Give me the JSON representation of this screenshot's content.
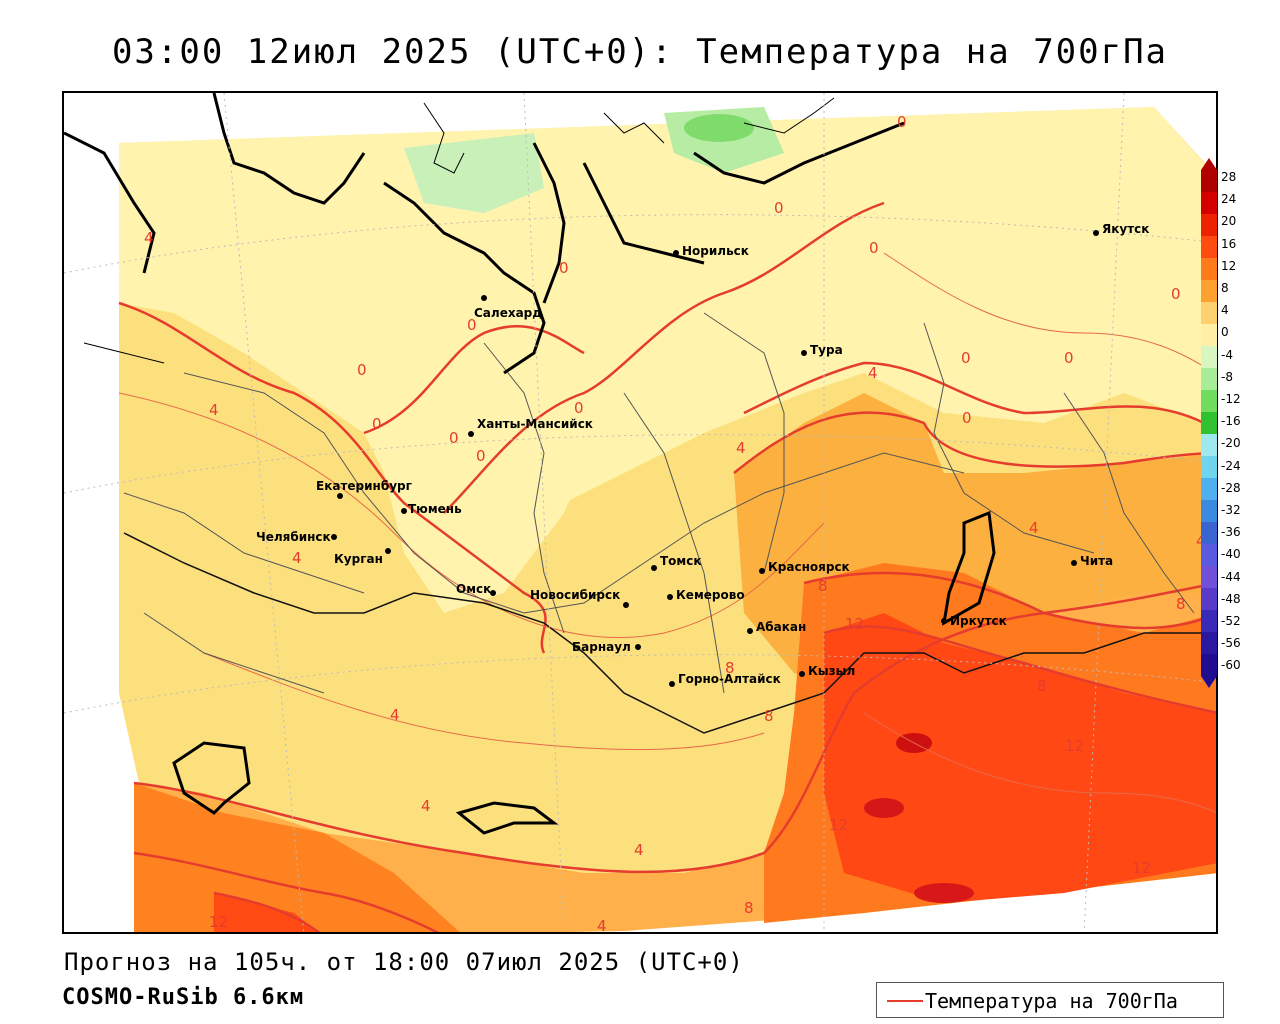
{
  "title": "03:00 12июл 2025 (UTC+0): Температура на 700гПа",
  "forecast_line": "Прогноз на 105ч. от 18:00 07июл 2025 (UTC+0)",
  "model_line": "COSMO-RuSib 6.6км",
  "legend_label": "Температура на 700гПа",
  "colorbar_ticks": [
    "28",
    "24",
    "20",
    "16",
    "12",
    "8",
    "4",
    "0",
    "-4",
    "-8",
    "-12",
    "-16",
    "-20",
    "-24",
    "-28",
    "-32",
    "-36",
    "-40",
    "-44",
    "-48",
    "-52",
    "-56",
    "-60"
  ],
  "colorbar_colors": [
    "#b00000",
    "#d40000",
    "#ee2200",
    "#ff4a10",
    "#ff7a1a",
    "#ffa030",
    "#ffd070",
    "#fff0a8",
    "#d8f7c0",
    "#a8ee9a",
    "#70dd60",
    "#30c030",
    "#9fe8f0",
    "#70d4ee",
    "#50b0ee",
    "#3a8ae0",
    "#3a64d0",
    "#5a5ae0",
    "#7050d8",
    "#5a3ac8",
    "#3a2ab8",
    "#2a18a0",
    "#200c90"
  ],
  "cities": [
    {
      "name": "Норильск"
    },
    {
      "name": "Якутск"
    },
    {
      "name": "Салехард"
    },
    {
      "name": "Тура"
    },
    {
      "name": "Ханты-Мансийск"
    },
    {
      "name": "Екатеринбург"
    },
    {
      "name": "Тюмень"
    },
    {
      "name": "Челябинск"
    },
    {
      "name": "Курган"
    },
    {
      "name": "Омск"
    },
    {
      "name": "Новосибирск"
    },
    {
      "name": "Томск"
    },
    {
      "name": "Кемерово"
    },
    {
      "name": "Красноярск"
    },
    {
      "name": "Абакан"
    },
    {
      "name": "Иркутск"
    },
    {
      "name": "Чита"
    },
    {
      "name": "Барнаул"
    },
    {
      "name": "Горно-Алтайск"
    },
    {
      "name": "Кызыл"
    }
  ],
  "isotherm_labels": [
    "0",
    "0",
    "0",
    "0",
    "0",
    "0",
    "0",
    "0",
    "0",
    "0",
    "0",
    "0",
    "0",
    "0",
    "4",
    "4",
    "4",
    "4",
    "4",
    "4",
    "4",
    "4",
    "4",
    "4",
    "4",
    "8",
    "8",
    "8",
    "8",
    "8",
    "8",
    "12",
    "12",
    "12",
    "12",
    "12"
  ]
}
